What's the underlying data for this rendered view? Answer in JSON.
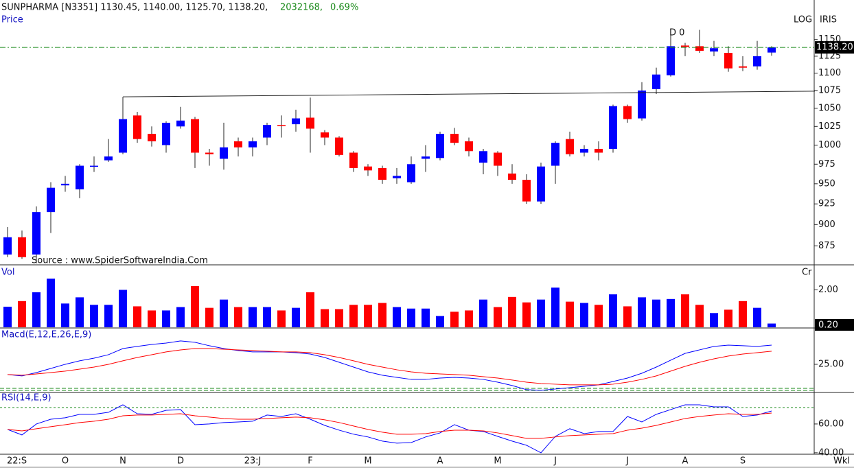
{
  "header": {
    "text": "SUNPHARMA [N3351] 1130.45, 1140.00, 1125.70, 1138.20,",
    "volume": "2032168,",
    "change": "0.69%",
    "price_label": "Price",
    "log_label": "LOG",
    "iris_label": "IRIS",
    "source": "Source : www.SpiderSoftwareIndia.Com",
    "period": "Wkl"
  },
  "chart_data": [
    {
      "type": "candlestick",
      "log": true,
      "up_color": "#0000ff",
      "down_color": "#ff0000",
      "categories": [
        "22:S",
        null,
        null,
        null,
        "O",
        null,
        null,
        null,
        "N",
        null,
        null,
        null,
        "D",
        null,
        null,
        null,
        null,
        "23:J",
        null,
        null,
        null,
        "F",
        null,
        null,
        null,
        "M",
        null,
        null,
        null,
        null,
        "A",
        null,
        null,
        null,
        "M",
        null,
        null,
        null,
        "J",
        null,
        null,
        null,
        null,
        "J",
        null,
        null,
        null,
        "A",
        null,
        null,
        null,
        "S",
        null,
        null
      ],
      "open": [
        865,
        885,
        865,
        915,
        948,
        943,
        972,
        980,
        990,
        1040,
        1015,
        1000,
        1025,
        1035,
        990,
        982,
        1005,
        997,
        1010,
        1027,
        1028,
        1037,
        1017,
        1010,
        990,
        972,
        970,
        957,
        952,
        982,
        983,
        1015,
        1005,
        977,
        990,
        963,
        955,
        928,
        973,
        1008,
        990,
        995,
        995,
        1053,
        1036,
        1077,
        1097,
        1141,
        1140,
        1132,
        1130,
        1110,
        1110,
        1130.45
      ],
      "high": [
        897,
        893,
        922,
        952,
        960,
        975,
        985,
        1008,
        1064,
        1045,
        1025,
        1032,
        1052,
        1038,
        995,
        1030,
        1010,
        1010,
        1030,
        1040,
        1048,
        1065,
        1020,
        1012,
        992,
        975,
        973,
        970,
        985,
        1000,
        1018,
        1023,
        1010,
        995,
        992,
        975,
        962,
        977,
        1005,
        1018,
        1000,
        1005,
        1055,
        1055,
        1087,
        1108,
        1165,
        1145,
        1165,
        1148,
        1140,
        1125,
        1148,
        1140
      ],
      "low": [
        862,
        860,
        855,
        890,
        940,
        932,
        965,
        978,
        988,
        1003,
        998,
        990,
        1022,
        970,
        973,
        968,
        985,
        985,
        1000,
        1010,
        1018,
        990,
        1000,
        985,
        965,
        960,
        950,
        950,
        950,
        965,
        980,
        1000,
        985,
        962,
        960,
        950,
        925,
        925,
        950,
        985,
        985,
        980,
        990,
        1030,
        1033,
        1070,
        1095,
        1125,
        1130,
        1125,
        1102,
        1103,
        1105,
        1125.7
      ],
      "close": [
        885,
        862,
        915,
        945,
        950,
        973,
        973,
        985,
        1035,
        1008,
        1005,
        1030,
        1033,
        990,
        988,
        997,
        997,
        1005,
        1027,
        1026,
        1036,
        1022,
        1010,
        987,
        970,
        967,
        955,
        960,
        975,
        985,
        1015,
        1003,
        992,
        992,
        973,
        955,
        928,
        972,
        1003,
        988,
        995,
        990,
        1053,
        1035,
        1075,
        1098,
        1140,
        1139,
        1133,
        1137,
        1107,
        1108,
        1125,
        1138.2
      ],
      "last_label": "1138.20",
      "last_line_color": "#1a8a1a",
      "ylim": [
        854,
        1212
      ],
      "yticks": [
        1150,
        1125,
        1100,
        1075,
        1050,
        1025,
        1000,
        975,
        950,
        925,
        900,
        875
      ],
      "trendline": {
        "x": [
          8,
          56
        ],
        "y": [
          1066,
          1074
        ]
      },
      "annotation": "D 0"
    },
    {
      "type": "volume",
      "title": "Vol",
      "unit": "Cr",
      "values": [
        1.1,
        1.4,
        1.87,
        2.6,
        1.27,
        1.6,
        1.2,
        1.2,
        2.0,
        1.12,
        0.9,
        0.9,
        1.08,
        2.2,
        1.04,
        1.48,
        1.08,
        1.08,
        1.08,
        0.9,
        1.04,
        1.87,
        0.97,
        0.97,
        1.2,
        1.2,
        1.3,
        1.08,
        1.0,
        1.0,
        0.6,
        0.83,
        0.9,
        1.48,
        1.08,
        1.62,
        1.33,
        1.48,
        2.12,
        1.37,
        1.3,
        1.2,
        1.76,
        1.12,
        1.6,
        1.48,
        1.51,
        1.76,
        1.2,
        0.76,
        0.94,
        1.4,
        1.04,
        0.2
      ],
      "last_label": "0.20",
      "ylim": [
        0,
        3.3
      ],
      "yticks": [
        {
          "value": 2,
          "label": "2.00"
        }
      ]
    },
    {
      "type": "line",
      "title": "Macd(E,12,E,26,E,9)",
      "series": [
        {
          "color": "#0000ff",
          "values": [
            14.3,
            12.9,
            16.4,
            20.7,
            25,
            28.6,
            31.4,
            35,
            41.4,
            43.6,
            45.7,
            47.1,
            49.3,
            47.9,
            44.3,
            41.4,
            39.3,
            37.9,
            37.9,
            37.9,
            37.1,
            35.7,
            32.1,
            27.1,
            22.1,
            17.1,
            13.6,
            11.4,
            9.3,
            9.3,
            10.7,
            11.4,
            10.7,
            9.3,
            6.4,
            2.9,
            -1.4,
            -2.1,
            -0.7,
            0.7,
            2.1,
            3.6,
            7.1,
            10.7,
            15.7,
            22.1,
            29.3,
            36.4,
            40,
            43.6,
            45,
            44.3,
            43.6,
            45
          ]
        },
        {
          "color": "#ff0000",
          "values": [
            14.3,
            13.6,
            15,
            16.4,
            17.9,
            20,
            22.1,
            25,
            28.6,
            32.1,
            35,
            37.9,
            40,
            41.4,
            41.4,
            40.7,
            40,
            39.3,
            38.6,
            37.9,
            37.9,
            37.1,
            35,
            32.1,
            28.6,
            25,
            22.1,
            19.3,
            17.1,
            15.7,
            15,
            14.3,
            13.6,
            12.1,
            10.7,
            8.6,
            6.4,
            5,
            4.3,
            3.6,
            3.6,
            3.6,
            4.3,
            6.4,
            9.3,
            12.9,
            17.9,
            22.9,
            27.1,
            30.7,
            33.6,
            35.7,
            37.1,
            38.6
          ]
        }
      ],
      "ylim": [
        -3.6,
        62.1
      ],
      "yticks": [
        {
          "value": 25,
          "label": "25.00"
        }
      ]
    },
    {
      "type": "line",
      "title": "RSI(14,E,9)",
      "series": [
        {
          "color": "#0000ff",
          "values": [
            56.2,
            52.4,
            60,
            63.3,
            64.3,
            66.7,
            66.7,
            68.1,
            73.3,
            67.1,
            66.7,
            69.5,
            70,
            59.5,
            60,
            61,
            61.4,
            61.9,
            66.2,
            65.2,
            67.1,
            63.3,
            59,
            55.7,
            52.9,
            51,
            48.1,
            46.7,
            47.1,
            51,
            53.8,
            59.5,
            55.7,
            54.8,
            51.4,
            48.1,
            45.2,
            40,
            51.4,
            56.7,
            53.3,
            54.8,
            54.8,
            65.2,
            61.4,
            66.7,
            70,
            73.3,
            73.3,
            71.9,
            71.9,
            65.2,
            66.2,
            69
          ]
        },
        {
          "color": "#ff0000",
          "values": [
            56.2,
            55.2,
            56.7,
            58.1,
            59.5,
            61,
            61.9,
            63.3,
            65.7,
            66.2,
            66.2,
            66.7,
            67.1,
            65.7,
            64.8,
            63.8,
            63.3,
            63.3,
            63.8,
            64.3,
            64.8,
            64.3,
            62.9,
            61,
            58.6,
            56.2,
            54.3,
            52.9,
            52.9,
            53.3,
            54.8,
            55.7,
            55.7,
            55.2,
            53.8,
            51.9,
            50,
            50,
            51,
            51.9,
            52.4,
            52.9,
            53.3,
            55.7,
            57.1,
            59,
            61.4,
            63.8,
            65.2,
            66.2,
            67.1,
            66.7,
            66.7,
            67.6
          ]
        }
      ],
      "ylim": [
        39,
        81.4
      ],
      "yticks": [
        {
          "value": 60,
          "label": "60.00"
        },
        {
          "value": 40,
          "label": "40.00"
        }
      ]
    }
  ]
}
